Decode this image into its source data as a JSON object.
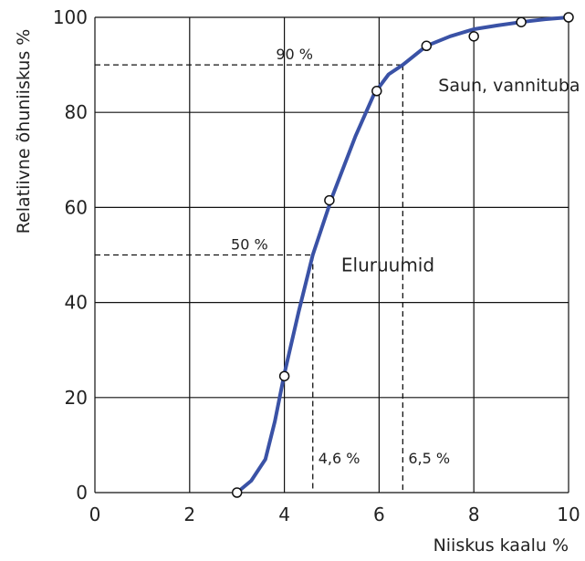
{
  "chart_data": {
    "type": "line",
    "xlabel": "Niiskus kaalu %",
    "ylabel": "Relatiivne õhuniiskus %",
    "xlim": [
      0,
      10
    ],
    "ylim": [
      0,
      100
    ],
    "x_ticks": [
      0,
      2,
      4,
      6,
      8,
      10
    ],
    "y_ticks": [
      0,
      20,
      40,
      60,
      80,
      100
    ],
    "grid": true,
    "line_color": "#3a52a6",
    "series": [
      {
        "curve": [
          [
            3.0,
            0
          ],
          [
            3.3,
            2.5
          ],
          [
            3.6,
            7
          ],
          [
            3.8,
            15
          ],
          [
            4.0,
            25
          ],
          [
            4.3,
            38
          ],
          [
            4.6,
            50
          ],
          [
            5.0,
            62
          ],
          [
            5.5,
            75
          ],
          [
            5.9,
            84
          ],
          [
            6.2,
            88
          ],
          [
            6.5,
            90
          ],
          [
            7.0,
            94
          ],
          [
            7.5,
            96
          ],
          [
            8.0,
            97.5
          ],
          [
            8.5,
            98.3
          ],
          [
            9.0,
            99
          ],
          [
            9.5,
            99.6
          ],
          [
            10.0,
            100
          ]
        ],
        "points": [
          [
            3.0,
            0
          ],
          [
            4.0,
            24.5
          ],
          [
            4.95,
            61.5
          ],
          [
            5.95,
            84.5
          ],
          [
            7.0,
            94
          ],
          [
            8.0,
            96
          ],
          [
            9.0,
            99
          ],
          [
            10.0,
            100
          ]
        ]
      }
    ],
    "guides": [
      {
        "x": 4.6,
        "y": 50,
        "y_text": "50 %",
        "x_text": "4,6 %"
      },
      {
        "x": 6.5,
        "y": 90,
        "y_text": "90 %",
        "x_text": "6,5 %"
      }
    ],
    "annotations": [
      {
        "text": "Saun, vannituba",
        "x": 7.25,
        "y": 84.5,
        "size": 19
      },
      {
        "text": "Eluruumid",
        "x": 5.2,
        "y": 46.5,
        "size": 20
      }
    ]
  }
}
